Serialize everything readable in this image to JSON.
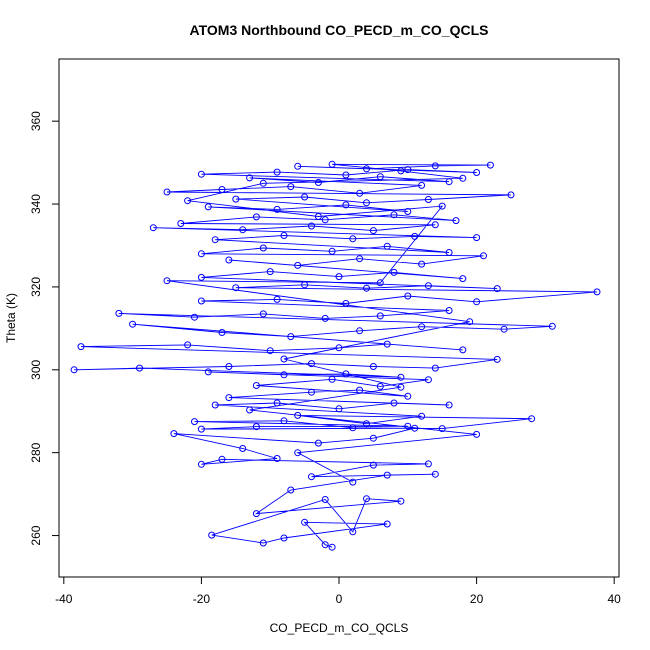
{
  "chart_data": {
    "type": "line",
    "title": "ATOM3 Northbound CO_PECD_m_CO_QCLS",
    "xlabel": "CO_PECD_m_CO_QCLS",
    "ylabel": "Theta (K)",
    "xlim": [
      -40.7,
      40.7
    ],
    "ylim": [
      250,
      375
    ],
    "xticks": [
      -40,
      -20,
      0,
      20,
      40
    ],
    "yticks": [
      260,
      280,
      300,
      320,
      340,
      360
    ],
    "grid": false,
    "color": "#0000ff",
    "marker": "open-circle",
    "series": [
      {
        "points": [
          [
            -1.0,
            257.2
          ],
          [
            -2.0,
            257.8
          ],
          [
            -5.0,
            263.2
          ],
          [
            7.0,
            262.8
          ],
          [
            -8.0,
            259.4
          ],
          [
            -11.0,
            258.2
          ],
          [
            -18.5,
            260.1
          ],
          [
            -2.0,
            268.7
          ],
          [
            2.0,
            260.9
          ],
          [
            4.0,
            268.9
          ],
          [
            9.0,
            268.3
          ],
          [
            -12.0,
            265.3
          ],
          [
            -7.0,
            271.0
          ],
          [
            7.0,
            274.6
          ],
          [
            14.0,
            274.8
          ],
          [
            -4.0,
            274.2
          ],
          [
            5.0,
            277.0
          ],
          [
            13.0,
            277.3
          ],
          [
            -17.0,
            278.4
          ],
          [
            -20.0,
            277.2
          ],
          [
            -9.0,
            278.6
          ],
          [
            -14.0,
            281.0
          ],
          [
            -24.0,
            284.6
          ],
          [
            -3.0,
            282.3
          ],
          [
            5.0,
            283.5
          ],
          [
            11.0,
            285.9
          ],
          [
            -20.0,
            285.7
          ],
          [
            -12.0,
            286.3
          ],
          [
            10.0,
            286.4
          ],
          [
            -21.0,
            287.5
          ],
          [
            -8.0,
            287.7
          ],
          [
            2.0,
            286.0
          ],
          [
            15.0,
            285.8
          ],
          [
            28.0,
            288.2
          ],
          [
            -6.0,
            289.0
          ],
          [
            4.0,
            287.0
          ],
          [
            12.0,
            288.8
          ],
          [
            -18.0,
            291.5
          ],
          [
            -9.0,
            292.0
          ],
          [
            0.0,
            290.6
          ],
          [
            8.0,
            292.0
          ],
          [
            16.0,
            291.5
          ],
          [
            -16.0,
            293.3
          ],
          [
            -4.0,
            294.6
          ],
          [
            3.0,
            295.1
          ],
          [
            10.0,
            293.6
          ],
          [
            -12.0,
            296.2
          ],
          [
            -1.0,
            297.7
          ],
          [
            6.0,
            296.0
          ],
          [
            13.0,
            297.6
          ],
          [
            -19.0,
            299.5
          ],
          [
            -8.0,
            298.8
          ],
          [
            1.0,
            299.0
          ],
          [
            9.0,
            298.2
          ],
          [
            -29.0,
            300.4
          ],
          [
            -38.5,
            300.0
          ],
          [
            -16.0,
            300.8
          ],
          [
            -4.0,
            301.5
          ],
          [
            5.0,
            300.8
          ],
          [
            14.0,
            300.4
          ],
          [
            23.0,
            302.5
          ],
          [
            -37.5,
            305.6
          ],
          [
            -22.0,
            306.0
          ],
          [
            -10.0,
            304.6
          ],
          [
            0.0,
            305.3
          ],
          [
            7.0,
            306.2
          ],
          [
            18.0,
            304.8
          ],
          [
            -30.0,
            311.0
          ],
          [
            -17.0,
            309.0
          ],
          [
            -7.0,
            308.0
          ],
          [
            3.0,
            309.4
          ],
          [
            12.0,
            310.4
          ],
          [
            24.0,
            309.8
          ],
          [
            31.0,
            310.5
          ],
          [
            -32.0,
            313.6
          ],
          [
            -21.0,
            312.7
          ],
          [
            -11.0,
            313.5
          ],
          [
            -2.0,
            312.4
          ],
          [
            6.0,
            313.0
          ],
          [
            16.0,
            314.3
          ],
          [
            -20.0,
            316.6
          ],
          [
            -9.0,
            317.0
          ],
          [
            1.0,
            316.0
          ],
          [
            10.0,
            317.8
          ],
          [
            20.0,
            316.4
          ],
          [
            37.5,
            318.8
          ],
          [
            -15.0,
            319.8
          ],
          [
            -5.0,
            320.5
          ],
          [
            4.0,
            319.7
          ],
          [
            13.0,
            320.3
          ],
          [
            23.0,
            319.6
          ],
          [
            -20.0,
            322.3
          ],
          [
            -10.0,
            323.7
          ],
          [
            0.0,
            322.5
          ],
          [
            8.0,
            323.5
          ],
          [
            18.0,
            322.0
          ],
          [
            -16.0,
            326.5
          ],
          [
            -6.0,
            325.2
          ],
          [
            3.0,
            326.8
          ],
          [
            12.0,
            325.5
          ],
          [
            21.0,
            327.5
          ],
          [
            -20.0,
            328.0
          ],
          [
            -11.0,
            329.4
          ],
          [
            -1.0,
            328.6
          ],
          [
            7.0,
            329.8
          ],
          [
            16.0,
            328.3
          ],
          [
            -18.0,
            331.4
          ],
          [
            -8.0,
            332.4
          ],
          [
            2.0,
            331.6
          ],
          [
            11.0,
            332.2
          ],
          [
            20.0,
            331.9
          ],
          [
            -27.0,
            334.3
          ],
          [
            -14.0,
            333.8
          ],
          [
            -4.0,
            334.7
          ],
          [
            5.0,
            333.6
          ],
          [
            14.0,
            335.0
          ],
          [
            -23.0,
            335.3
          ],
          [
            -12.0,
            336.9
          ],
          [
            -2.0,
            336.2
          ],
          [
            8.0,
            337.4
          ],
          [
            17.0,
            336.0
          ],
          [
            -19.0,
            339.3
          ],
          [
            -9.0,
            338.7
          ],
          [
            1.0,
            339.8
          ],
          [
            10.0,
            338.2
          ],
          [
            -15.0,
            341.2
          ],
          [
            -5.0,
            341.7
          ],
          [
            4.0,
            340.3
          ],
          [
            13.0,
            341.1
          ],
          [
            25.0,
            342.2
          ],
          [
            -25.0,
            342.9
          ],
          [
            -17.0,
            343.5
          ],
          [
            -7.0,
            344.2
          ],
          [
            3.0,
            342.6
          ],
          [
            12.0,
            344.5
          ],
          [
            -13.0,
            346.3
          ],
          [
            -3.0,
            345.2
          ],
          [
            6.0,
            346.6
          ],
          [
            16.0,
            345.4
          ],
          [
            -20.0,
            347.2
          ],
          [
            -9.0,
            347.7
          ],
          [
            1.0,
            347.0
          ],
          [
            10.0,
            348.3
          ],
          [
            20.0,
            347.6
          ],
          [
            -6.0,
            349.1
          ],
          [
            4.0,
            348.5
          ],
          [
            14.0,
            349.2
          ],
          [
            22.0,
            349.4
          ],
          [
            -1.0,
            349.6
          ],
          [
            9.0,
            348.0
          ],
          [
            18.0,
            346.2
          ],
          [
            -11.0,
            345.0
          ],
          [
            -22.0,
            340.8
          ],
          [
            -3.0,
            337.0
          ],
          [
            15.0,
            339.5
          ],
          [
            6.0,
            321.0
          ],
          [
            -25.0,
            321.5
          ],
          [
            19.0,
            311.6
          ],
          [
            -8.0,
            302.6
          ],
          [
            9.0,
            295.8
          ],
          [
            -13.0,
            290.3
          ],
          [
            20.0,
            284.4
          ],
          [
            -6.0,
            280.0
          ],
          [
            2.0,
            272.9
          ]
        ]
      }
    ]
  }
}
